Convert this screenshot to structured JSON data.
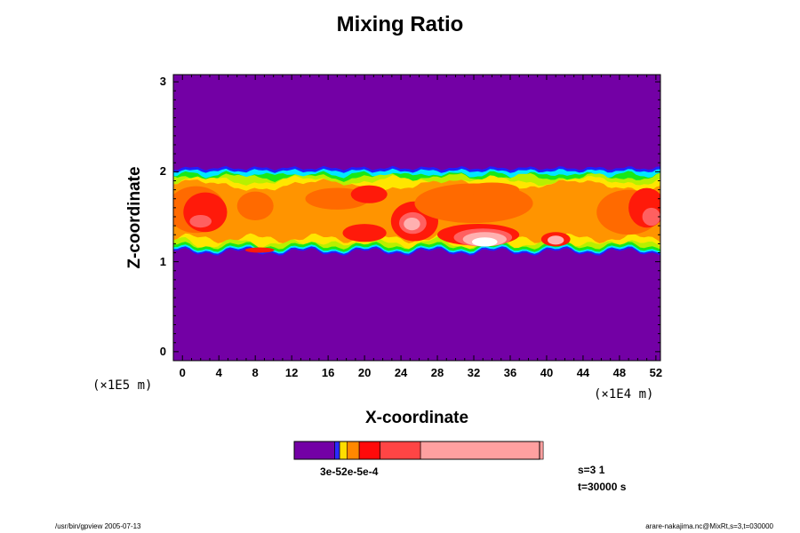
{
  "chart_data": {
    "type": "heatmap",
    "title": "Mixing Ratio",
    "xlabel": "X-coordinate",
    "ylabel": "Z-coordinate",
    "x_unit": "(×1E4 m)",
    "y_unit": "(×1E5 m)",
    "xlim": [
      -1,
      52.5
    ],
    "ylim": [
      -0.1,
      3.08
    ],
    "x_ticks": [
      "0",
      "4",
      "8",
      "12",
      "16",
      "20",
      "24",
      "28",
      "32",
      "36",
      "40",
      "44",
      "48",
      "52"
    ],
    "y_ticks": [
      "0",
      "1",
      "2",
      "3"
    ],
    "background_color": "#7300a5",
    "cloud_layer": {
      "z_bottom": 1.13,
      "z_top": 2.02
    },
    "colorbar": {
      "tick_label": "3e-52e-5e-4",
      "colors": [
        "#7300a5",
        "#2b2bff",
        "#ffdd00",
        "#ff8800",
        "#ff0a0a",
        "#ff4545",
        "#ffa0a0"
      ],
      "widths": [
        0.165,
        0.02,
        0.03,
        0.05,
        0.085,
        0.165,
        0.5
      ]
    },
    "palette": {
      "background": "#7300a5",
      "blue": "#2020ff",
      "cyan": "#00e8ff",
      "green": "#18e818",
      "lime": "#b8f000",
      "yellow": "#ffe600",
      "orange": "#ff9400",
      "dark_orange": "#ff6a00",
      "red": "#ff1a0a",
      "light_red": "#ff6060",
      "pink": "#ffb0b0",
      "white": "#ffffff"
    }
  },
  "info": {
    "line1": "s=3 1",
    "line2": "t=30000 s"
  },
  "footer": {
    "left": "/usr/bin/gpview 2005-07-13",
    "right": "arare-nakajima.nc@MixRt,s=3,t=030000"
  }
}
